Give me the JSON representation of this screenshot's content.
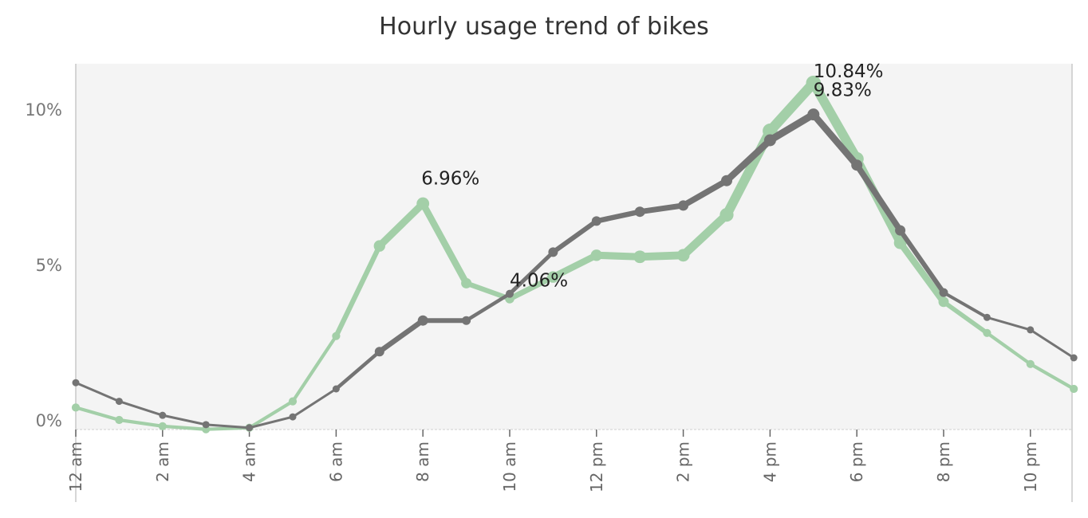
{
  "chart_data": {
    "type": "line",
    "title": "Hourly usage trend of bikes",
    "xlabel": "",
    "ylabel": "",
    "x": [
      "12 am",
      "1 am",
      "2 am",
      "3 am",
      "4 am",
      "5 am",
      "6 am",
      "7 am",
      "8 am",
      "9 am",
      "10 am",
      "11 am",
      "12 pm",
      "1 pm",
      "2 pm",
      "3 pm",
      "4 pm",
      "5 pm",
      "6 pm",
      "7 pm",
      "8 pm",
      "9 pm",
      "10 pm",
      "11 pm"
    ],
    "x_tick_labels": [
      "12 am",
      "2 am",
      "4 am",
      "6 am",
      "8 am",
      "10 am",
      "12 pm",
      "2 pm",
      "4 pm",
      "6 pm",
      "8 pm",
      "10 pm"
    ],
    "y_tick_labels": [
      "10%",
      "5%",
      "0%"
    ],
    "y_ticks": [
      10,
      5,
      0
    ],
    "ylim": [
      -0.4,
      11.8
    ],
    "grid": false,
    "series": [
      {
        "color": "#a3cfa8",
        "values": [
          0.4,
          0.0,
          -0.2,
          -0.3,
          -0.25,
          0.6,
          2.7,
          5.6,
          6.96,
          4.4,
          3.9,
          4.6,
          5.3,
          5.25,
          5.3,
          6.6,
          9.3,
          10.84,
          8.4,
          5.7,
          3.8,
          2.8,
          1.8,
          1.0
        ],
        "data_labels": [
          {
            "index": 8,
            "text": "6.96%"
          },
          {
            "index": 17,
            "text": "10.84%"
          }
        ]
      },
      {
        "color": "#747474",
        "values": [
          1.2,
          0.6,
          0.15,
          -0.15,
          -0.25,
          0.1,
          1.0,
          2.2,
          3.2,
          3.2,
          4.06,
          5.4,
          6.4,
          6.7,
          6.9,
          7.7,
          9.0,
          9.83,
          8.2,
          6.1,
          4.1,
          3.3,
          2.9,
          2.0
        ],
        "data_labels": [
          {
            "index": 10,
            "text": "4.06%"
          },
          {
            "index": 17,
            "text": "9.83%"
          }
        ]
      }
    ]
  }
}
